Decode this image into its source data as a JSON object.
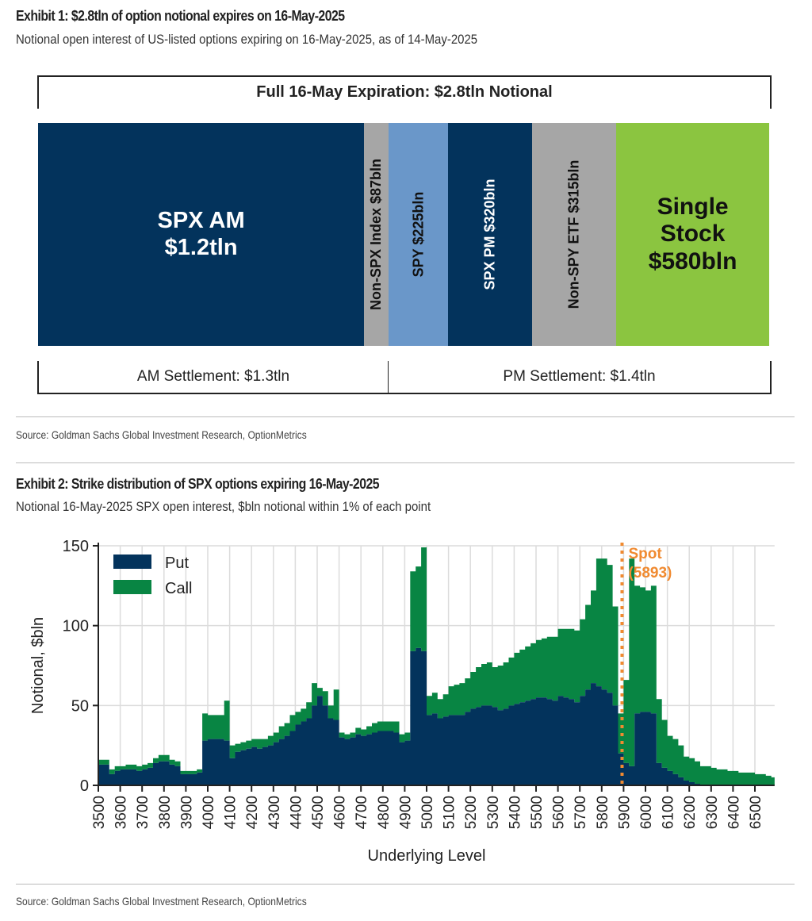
{
  "exhibit1": {
    "title": "Exhibit 1: $2.8tln of option notional expires on 16-May-2025",
    "subtitle": "Notional open interest of US-listed options expiring on 16-May-2025, as of 14-May-2025",
    "top_label": "Full 16-May Expiration: $2.8tln Notional",
    "segments": [
      {
        "label_line1": "SPX AM",
        "label_line2": "$1.2tln",
        "value_bln": 1200,
        "color": "#03335c",
        "text_color": "#ffffff",
        "orientation": "horizontal"
      },
      {
        "label_line1": "Non-SPX Index $87bln",
        "value_bln": 87,
        "color": "#a6a6a6",
        "text_color": "#111111",
        "orientation": "vertical"
      },
      {
        "label_line1": "SPY $225bln",
        "value_bln": 225,
        "color": "#6a97c9",
        "text_color": "#111111",
        "orientation": "vertical"
      },
      {
        "label_line1": "SPX PM $320bln",
        "value_bln": 320,
        "color": "#03335c",
        "text_color": "#ffffff",
        "orientation": "vertical"
      },
      {
        "label_line1": "Non-SPY ETF $315bln",
        "value_bln": 315,
        "color": "#a6a6a6",
        "text_color": "#111111",
        "orientation": "vertical"
      },
      {
        "label_line1": "Single",
        "label_line2": "Stock",
        "label_line3": "$580bln",
        "value_bln": 580,
        "color": "#8bc540",
        "text_color": "#111111",
        "orientation": "horizontal"
      }
    ],
    "am_settlement": "AM Settlement: $1.3tln",
    "pm_settlement": "PM Settlement: $1.4tln",
    "source": "Source: Goldman Sachs Global Investment Research, OptionMetrics"
  },
  "exhibit2": {
    "title": "Exhibit 2: Strike distribution of SPX options expiring 16-May-2025",
    "subtitle": "Notional 16-May-2025 SPX open interest, $bln notional within 1% of each point",
    "source": "Source: Goldman Sachs Global Investment Research, OptionMetrics"
  },
  "chart_data": [
    {
      "type": "bar",
      "orientation": "stacked-horizontal-100",
      "title": "Full 16-May Expiration: $2.8tln Notional",
      "categories": [
        "SPX AM",
        "Non-SPX Index",
        "SPY",
        "SPX PM",
        "Non-SPY ETF",
        "Single Stock"
      ],
      "values": [
        1200,
        87,
        225,
        320,
        315,
        580
      ],
      "unit": "$bln"
    },
    {
      "type": "area",
      "stacked": true,
      "title": "Strike distribution of SPX options expiring 16-May-2025",
      "xlabel": "Underlying Level",
      "ylabel": "Notional, $bln",
      "xlim": [
        3500,
        6590
      ],
      "ylim": [
        0,
        150
      ],
      "xticks": [
        3500,
        3600,
        3700,
        3800,
        3900,
        4000,
        4100,
        4200,
        4300,
        4400,
        4500,
        4600,
        4700,
        4800,
        4900,
        5000,
        5100,
        5200,
        5300,
        5400,
        5500,
        5600,
        5700,
        5800,
        5900,
        6000,
        6100,
        6200,
        6300,
        6400,
        6500
      ],
      "yticks": [
        0,
        50,
        100,
        150
      ],
      "grid": true,
      "legend": {
        "position": "top-left",
        "entries": [
          {
            "name": "Put",
            "color": "#03335c"
          },
          {
            "name": "Call",
            "color": "#088543"
          }
        ]
      },
      "annotation": {
        "label_line1": "Spot",
        "label_line2": "(5893)",
        "x": 5893,
        "color": "#f08a30"
      },
      "x": [
        3500,
        3525,
        3550,
        3575,
        3600,
        3625,
        3650,
        3675,
        3700,
        3725,
        3750,
        3775,
        3800,
        3825,
        3850,
        3875,
        3900,
        3925,
        3950,
        3975,
        4000,
        4025,
        4050,
        4075,
        4100,
        4125,
        4150,
        4175,
        4200,
        4225,
        4250,
        4275,
        4300,
        4325,
        4350,
        4375,
        4400,
        4425,
        4450,
        4475,
        4500,
        4525,
        4550,
        4575,
        4600,
        4625,
        4650,
        4675,
        4700,
        4725,
        4750,
        4775,
        4800,
        4825,
        4850,
        4875,
        4900,
        4925,
        4950,
        4975,
        5000,
        5025,
        5050,
        5075,
        5100,
        5125,
        5150,
        5175,
        5200,
        5225,
        5250,
        5275,
        5300,
        5325,
        5350,
        5375,
        5400,
        5425,
        5450,
        5475,
        5500,
        5525,
        5550,
        5575,
        5600,
        5625,
        5650,
        5675,
        5700,
        5725,
        5750,
        5775,
        5800,
        5825,
        5850,
        5875,
        5900,
        5925,
        5950,
        5975,
        6000,
        6025,
        6050,
        6075,
        6100,
        6125,
        6150,
        6175,
        6200,
        6225,
        6250,
        6275,
        6300,
        6325,
        6350,
        6375,
        6400,
        6425,
        6450,
        6475,
        6500,
        6525,
        6550,
        6575,
        6590
      ],
      "series": [
        {
          "name": "Put",
          "values": [
            13,
            13,
            7,
            9,
            10,
            10,
            10,
            9,
            10,
            11,
            14,
            15,
            15,
            13,
            12,
            7,
            7,
            7,
            8,
            28,
            29,
            29,
            29,
            28,
            17,
            21,
            22,
            23,
            24,
            23,
            24,
            25,
            27,
            29,
            31,
            34,
            38,
            40,
            42,
            50,
            56,
            50,
            42,
            41,
            30,
            29,
            30,
            32,
            31,
            32,
            33,
            34,
            34,
            34,
            33,
            27,
            28,
            84,
            86,
            84,
            44,
            45,
            42,
            43,
            44,
            44,
            44,
            46,
            48,
            49,
            50,
            50,
            49,
            47,
            48,
            50,
            51,
            52,
            53,
            54,
            55,
            55,
            54,
            53,
            56,
            55,
            54,
            52,
            56,
            60,
            64,
            62,
            60,
            58,
            50,
            20,
            14,
            12,
            45,
            46,
            46,
            45,
            14,
            11,
            9,
            7,
            5,
            3,
            2,
            1,
            0,
            0,
            0,
            0,
            0,
            0,
            0,
            0,
            0,
            0,
            0,
            0,
            0,
            0,
            0
          ]
        },
        {
          "name": "Call",
          "values": [
            3,
            3,
            3,
            3,
            2,
            3,
            3,
            3,
            3,
            3,
            3,
            4,
            4,
            3,
            3,
            2,
            2,
            2,
            2,
            17,
            15,
            15,
            15,
            25,
            8,
            5,
            5,
            5,
            5,
            6,
            5,
            6,
            6,
            8,
            8,
            10,
            8,
            8,
            10,
            14,
            5,
            9,
            8,
            19,
            3,
            3,
            3,
            4,
            4,
            5,
            6,
            6,
            6,
            6,
            7,
            5,
            5,
            50,
            51,
            65,
            12,
            13,
            12,
            14,
            18,
            19,
            20,
            21,
            23,
            25,
            26,
            27,
            25,
            28,
            29,
            30,
            32,
            33,
            34,
            35,
            36,
            37,
            39,
            40,
            42,
            43,
            44,
            45,
            48,
            53,
            58,
            80,
            82,
            80,
            62,
            25,
            52,
            130,
            80,
            78,
            76,
            80,
            40,
            30,
            22,
            22,
            20,
            15,
            15,
            14,
            12,
            12,
            11,
            10,
            10,
            9,
            9,
            8,
            8,
            8,
            7,
            7,
            6,
            5,
            5
          ]
        }
      ]
    }
  ]
}
